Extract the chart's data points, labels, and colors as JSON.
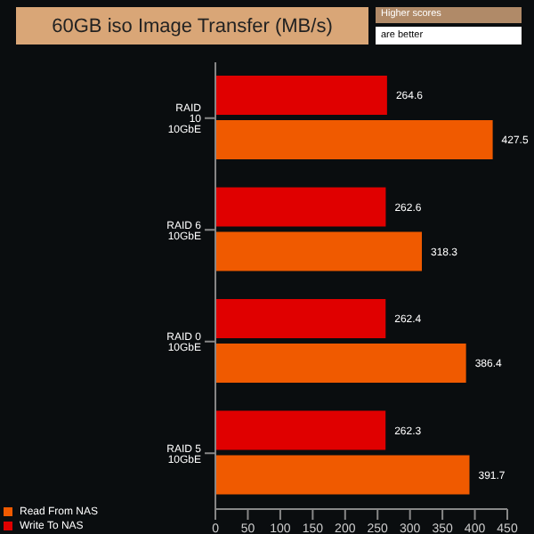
{
  "chart_data": {
    "type": "bar",
    "orientation": "horizontal",
    "title": "60GB iso Image Transfer (MB/s)",
    "annotations": [
      "Higher scores",
      "are better"
    ],
    "categories": [
      "RAID 10 10GbE",
      "RAID 6 10GbE",
      "RAID 0 10GbE",
      "RAID 5 10GbE"
    ],
    "series": [
      {
        "name": "Write To NAS",
        "color": "#e00000",
        "values": [
          264.6,
          262.6,
          262.4,
          262.3
        ]
      },
      {
        "name": "Read From NAS",
        "color": "#f05a00",
        "values": [
          427.5,
          318.3,
          386.4,
          391.7
        ]
      }
    ],
    "xlim": [
      0,
      450
    ],
    "xticks": [
      0,
      50,
      100,
      150,
      200,
      250,
      300,
      350,
      400,
      450
    ],
    "data_labels": true,
    "legend": "bottom left",
    "grid": false
  }
}
